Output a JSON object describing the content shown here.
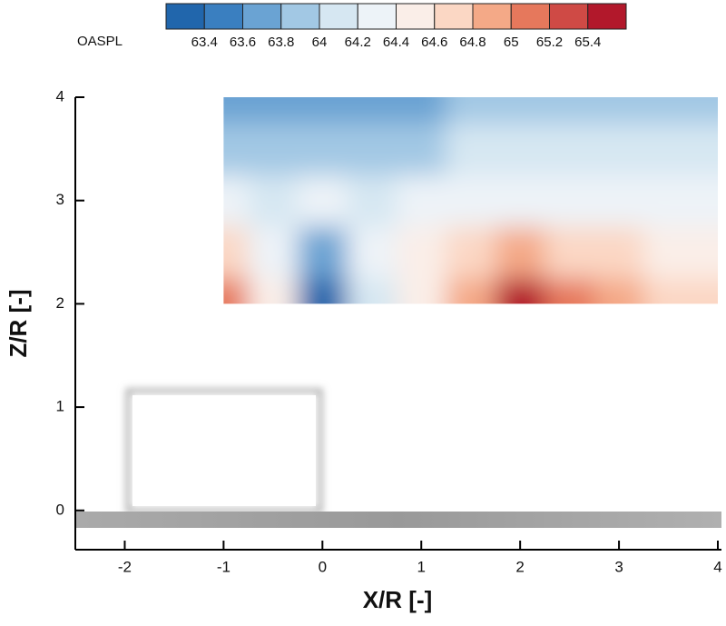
{
  "chart_data": {
    "type": "contour",
    "colorbar_label": "OASPL",
    "levels": [
      63.4,
      63.6,
      63.8,
      64,
      64.2,
      64.4,
      64.6,
      64.8,
      65,
      65.2,
      65.4
    ],
    "colors": [
      "#2166ac",
      "#3a7fc0",
      "#6aa3d3",
      "#a2c8e4",
      "#d6e7f2",
      "#edf3f8",
      "#faeee8",
      "#fbd7c4",
      "#f4a987",
      "#e6785c",
      "#cf4a45",
      "#b2182b"
    ],
    "x": [
      -1,
      -0.5,
      0,
      0.5,
      1,
      1.5,
      2,
      2.5,
      3,
      3.5,
      4
    ],
    "y": [
      2,
      2.5,
      3,
      3.5,
      4
    ],
    "values": [
      [
        65.0,
        64.4,
        63.3,
        64.0,
        64.4,
        64.8,
        65.4,
        65.0,
        64.8,
        64.6,
        64.6
      ],
      [
        64.6,
        64.2,
        63.6,
        64.2,
        64.4,
        64.6,
        64.8,
        64.6,
        64.6,
        64.4,
        64.4
      ],
      [
        64.2,
        64.0,
        64.2,
        64.0,
        64.2,
        64.2,
        64.2,
        64.2,
        64.2,
        64.2,
        64.2
      ],
      [
        63.8,
        63.8,
        63.8,
        63.8,
        63.8,
        64.0,
        64.0,
        64.0,
        64.0,
        64.0,
        64.0
      ],
      [
        63.6,
        63.6,
        63.6,
        63.6,
        63.6,
        63.8,
        63.8,
        63.8,
        63.8,
        63.8,
        63.8
      ]
    ],
    "x_label": "X/R [-]",
    "y_label": "Z/R [-]",
    "xlim": [
      -2.5,
      4
    ],
    "ylim": [
      -0.38,
      4
    ],
    "xticks": [
      -2,
      -1,
      0,
      1,
      2,
      3,
      4
    ],
    "yticks": [
      0,
      1,
      2,
      3,
      4
    ]
  }
}
